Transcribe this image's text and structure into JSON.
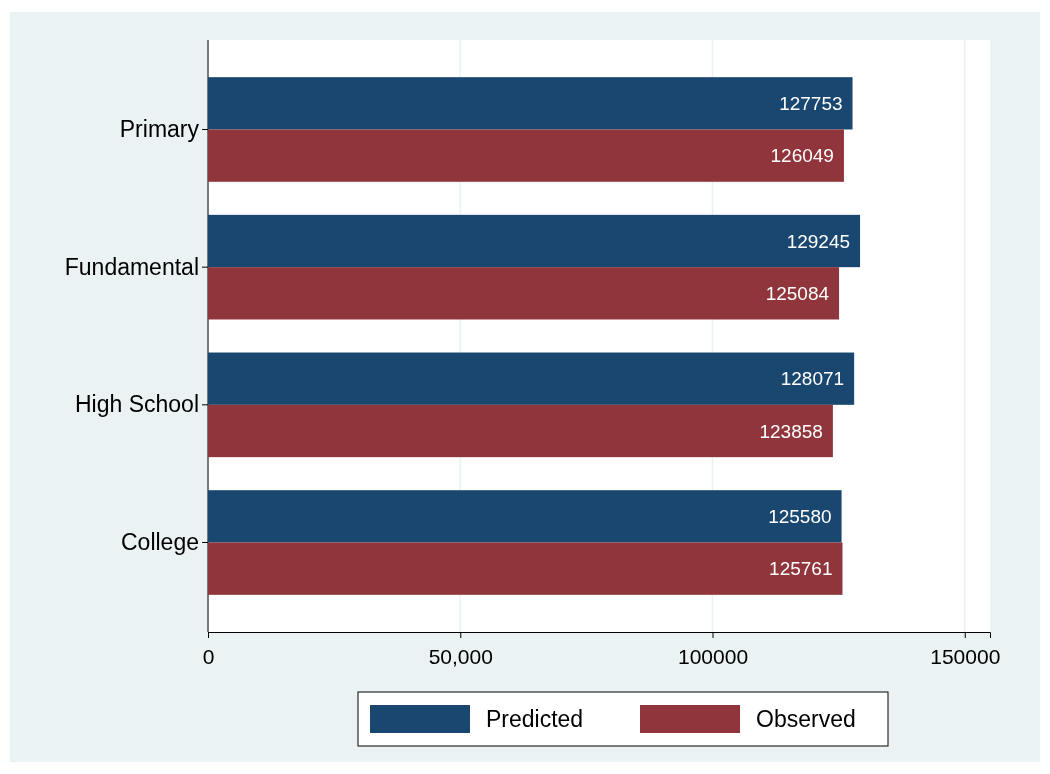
{
  "chart_data": {
    "type": "bar",
    "orientation": "horizontal",
    "categories": [
      "Primary",
      "Fundamental",
      "High School",
      "College"
    ],
    "series": [
      {
        "name": "Predicted",
        "color": "#1a476f",
        "values": [
          127753,
          129245,
          128071,
          125580
        ]
      },
      {
        "name": "Observed",
        "color": "#90353b",
        "values": [
          126049,
          125084,
          123858,
          125761
        ]
      }
    ],
    "xlim": [
      0,
      155000
    ],
    "xticks": [
      0,
      {
        "value": 50000,
        "label": "50,000"
      },
      100000,
      150000
    ],
    "grid": "x",
    "data_labels": true,
    "legend": "bottom"
  }
}
